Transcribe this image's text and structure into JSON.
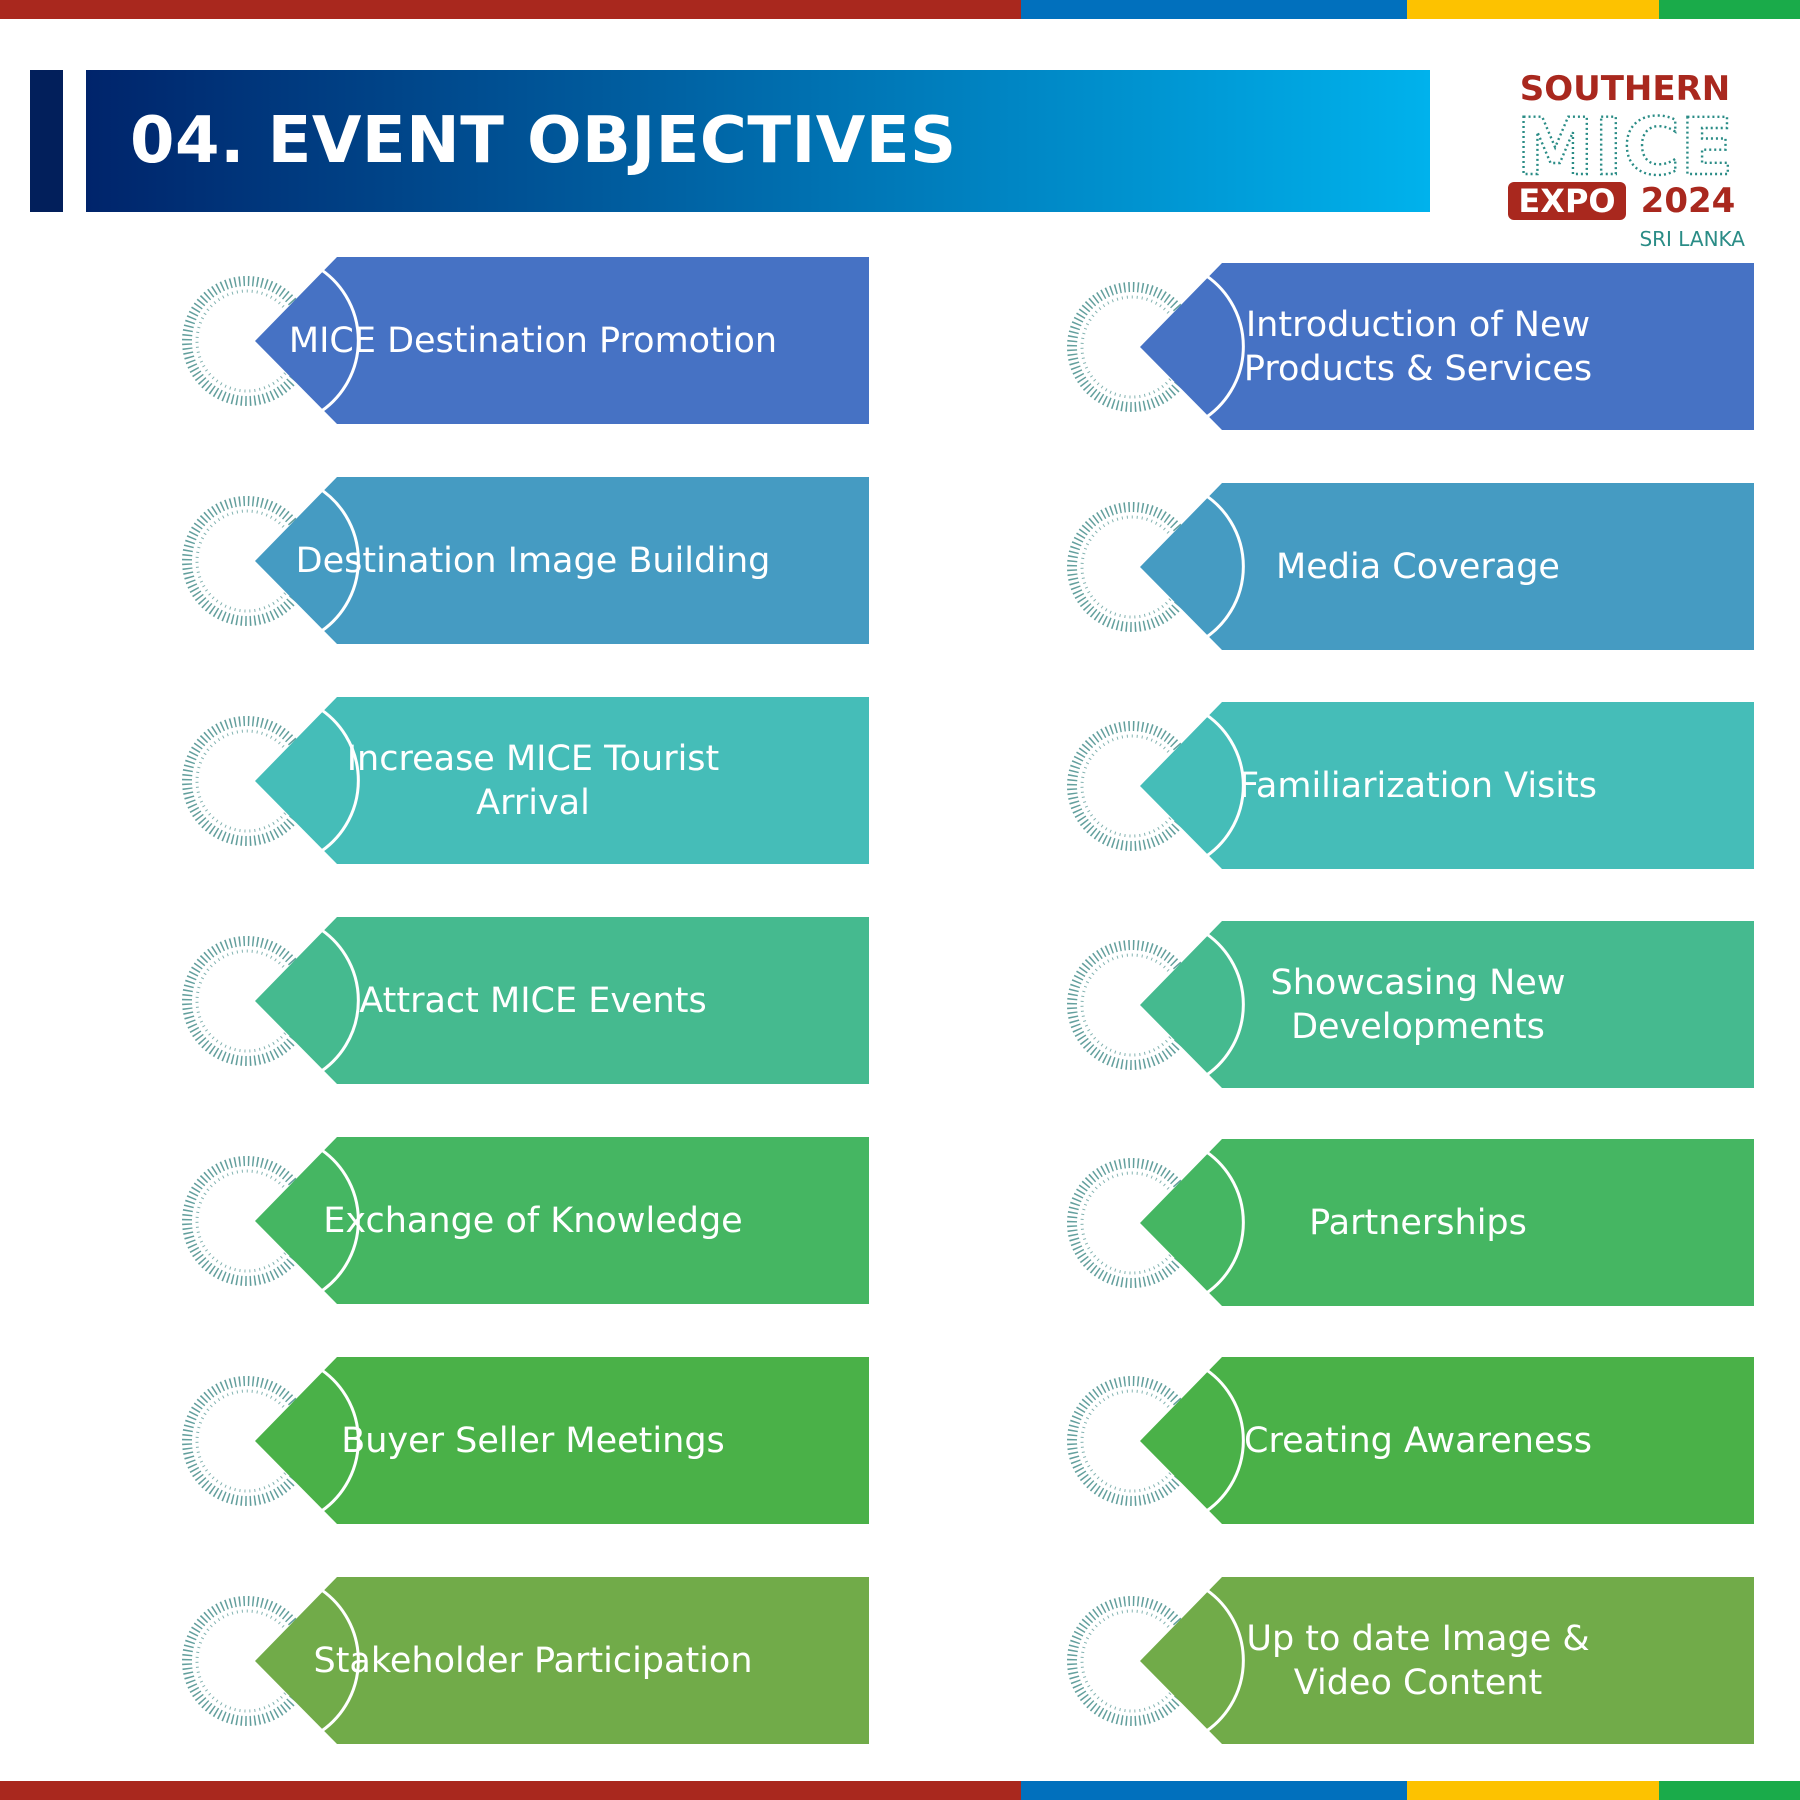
{
  "stripe_colors": {
    "red": "#a9281e",
    "blue": "#0170bd",
    "yellow": "#fdc200",
    "green": "#1aab4a"
  },
  "header": {
    "title": "04. EVENT OBJECTIVES",
    "accent_color": "#021f5b",
    "gradient_start": "#00246b",
    "gradient_end": "#00b2ec"
  },
  "logo": {
    "line1": "SOUTHERN",
    "line2": "MICE",
    "line3_box": "EXPO",
    "line3_year": "2024",
    "line4": "SRI LANKA",
    "brand_color": "#a9281e",
    "subtitle_color": "#2a8c86"
  },
  "objectives": {
    "left": [
      {
        "label": "MICE Destination Promotion",
        "color": "#4672c4"
      },
      {
        "label": "Destination Image Building",
        "color": "#459bc2"
      },
      {
        "label": "Increase MICE Tourist\nArrival",
        "color": "#45bdb8"
      },
      {
        "label": "Attract MICE Events",
        "color": "#45ba8f"
      },
      {
        "label": "Exchange of Knowledge",
        "color": "#45b662"
      },
      {
        "label": "Buyer Seller Meetings",
        "color": "#4ab148"
      },
      {
        "label": "Stakeholder Participation",
        "color": "#71ab49"
      }
    ],
    "right": [
      {
        "label": "Introduction of New\nProducts & Services",
        "color": "#4672c4"
      },
      {
        "label": "Media Coverage",
        "color": "#459bc2"
      },
      {
        "label": "Familiarization Visits",
        "color": "#45bdb8"
      },
      {
        "label": "Showcasing New\nDevelopments",
        "color": "#45ba8f"
      },
      {
        "label": "Partnerships",
        "color": "#45b662"
      },
      {
        "label": "Creating Awareness",
        "color": "#4ab148"
      },
      {
        "label": "Up to date Image &\nVideo Content",
        "color": "#71ab49"
      }
    ],
    "ring_color": "#2f7f7c"
  }
}
